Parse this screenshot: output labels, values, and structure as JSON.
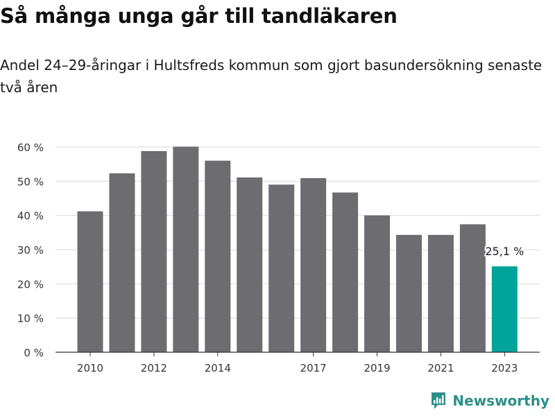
{
  "header": {
    "title": "Så många unga går till tandläkaren",
    "subtitle": "Andel 24–29-åringar i Hultsfreds kommun som gjort basundersökning senaste två åren"
  },
  "brand": {
    "name": "Newsworthy",
    "icon": "newsworthy-logo-icon",
    "color": "#2c8f89"
  },
  "chart_data": {
    "type": "bar",
    "categories": [
      "2010",
      "2011",
      "2012",
      "2013",
      "2014",
      "2015",
      "2016",
      "2017",
      "2018",
      "2019",
      "2020",
      "2021",
      "2022",
      "2023"
    ],
    "values": [
      41.2,
      52.3,
      58.8,
      60.1,
      56.0,
      51.1,
      49.0,
      50.9,
      46.7,
      40.0,
      34.3,
      34.3,
      37.4,
      25.1
    ],
    "x_tick_labels": [
      "2010",
      "2012",
      "2014",
      "2017",
      "2019",
      "2021",
      "2023"
    ],
    "y_ticks": [
      0,
      10,
      20,
      30,
      40,
      50,
      60
    ],
    "y_tick_labels": [
      "0 %",
      "10 %",
      "20 %",
      "30 %",
      "40 %",
      "50 %",
      "60 %"
    ],
    "ylim": [
      0,
      60
    ],
    "grid": true,
    "colors": {
      "bar": "#6d6c71",
      "highlight": "#00a49a",
      "grid": "#d9d9d9",
      "axis": "#333333"
    },
    "highlight_category": "2023",
    "annotations": [
      {
        "category": "2023",
        "text": "25,1 %"
      }
    ]
  }
}
